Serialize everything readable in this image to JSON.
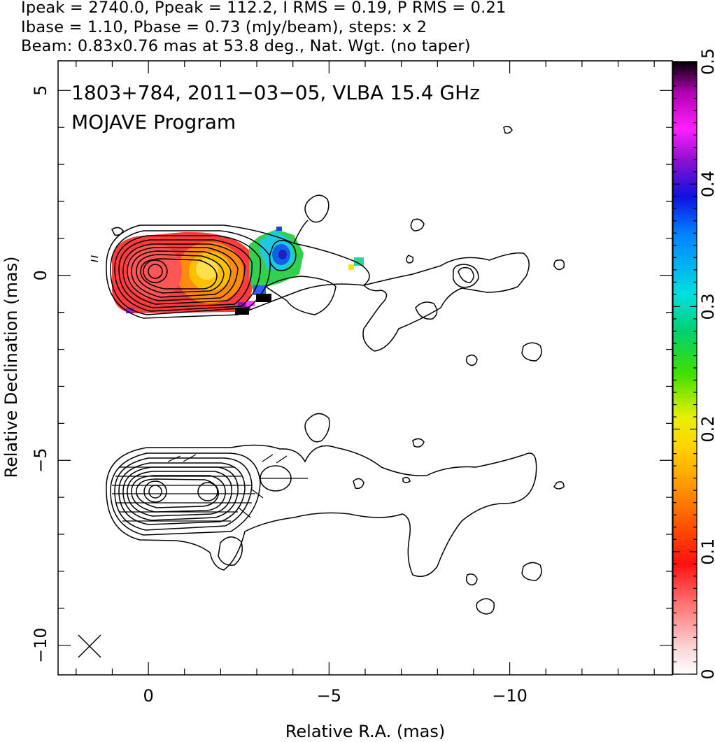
{
  "header": {
    "line1": "Ipeak = 2740.0, Ppeak = 112.2, I RMS = 0.19, P RMS = 0.21",
    "line2": "Ibase = 1.10, Pbase = 0.73 (mJy/beam), steps: x 2",
    "line3": "Beam: 0.83x0.76 mas at 53.8 deg., Nat. Wgt. (no taper)"
  },
  "map_title": {
    "line1": "1803+784, 2011−03−05, VLBA 15.4 GHz",
    "line2": "MOJAVE Program"
  },
  "chart_data": {
    "type": "heatmap",
    "xlabel": "Relative R.A. (mas)",
    "ylabel": "Relative Declination (mas)",
    "xlim": [
      2.5,
      -14.5
    ],
    "ylim": [
      -10.8,
      5.8
    ],
    "x_ticks": [
      0,
      -5,
      -10
    ],
    "x_tick_labels": [
      "0",
      "−5",
      "−10"
    ],
    "y_ticks": [
      5,
      0,
      -5,
      -10
    ],
    "y_tick_labels": [
      "5",
      "0",
      "−5",
      "−10"
    ],
    "colorbar": {
      "range": [
        0,
        0.5
      ],
      "ticks": [
        0,
        0.1,
        0.2,
        0.3,
        0.4,
        0.5
      ],
      "tick_labels": [
        "0",
        "0.1",
        "0.2",
        "0.3",
        "0.4",
        "0.5"
      ]
    },
    "beam": {
      "major_mas": 0.83,
      "minor_mas": 0.76,
      "pa_deg": 53.8
    },
    "panels": [
      "upper: total intensity contours with fractional polarization color",
      "lower: total intensity contours with EVPA ticks"
    ]
  },
  "colors": {
    "background": "#ffffff",
    "contour": "#000000"
  }
}
